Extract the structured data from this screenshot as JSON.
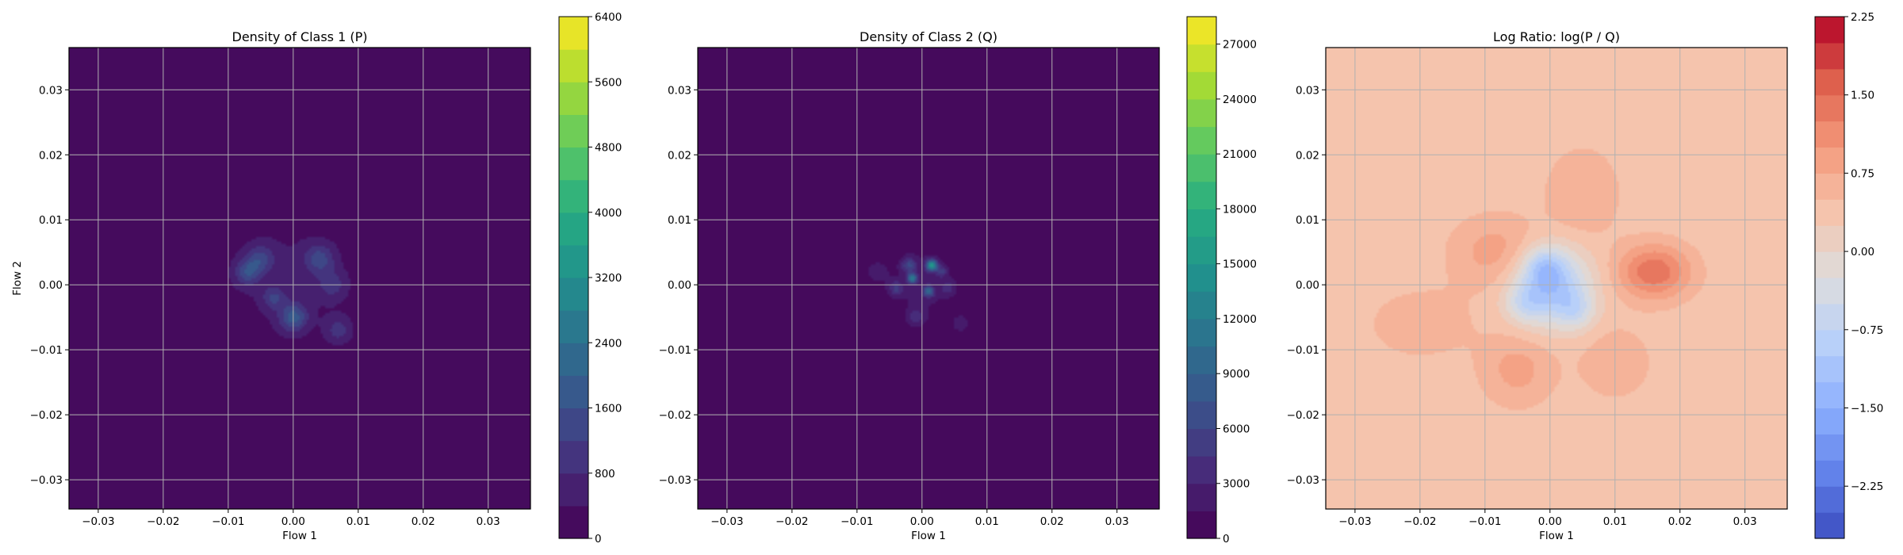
{
  "chart_data": [
    {
      "type": "heatmap",
      "title": "Density of Class 1 (P)",
      "xlabel": "Flow 1",
      "ylabel": "Flow 2",
      "xlim": [
        -0.0345,
        0.0365
      ],
      "ylim": [
        -0.0345,
        0.0365
      ],
      "xticks": [
        -0.03,
        -0.02,
        -0.01,
        0.0,
        0.01,
        0.02,
        0.03
      ],
      "xtick_labels": [
        "−0.03",
        "−0.02",
        "−0.01",
        "0.00",
        "0.01",
        "0.02",
        "0.03"
      ],
      "yticks": [
        -0.03,
        -0.02,
        -0.01,
        0.0,
        0.01,
        0.02,
        0.03
      ],
      "ytick_labels": [
        "−0.03",
        "−0.02",
        "−0.01",
        "0.00",
        "0.01",
        "0.02",
        "0.03"
      ],
      "grid": true,
      "colormap": "viridis",
      "colorbar": {
        "range": [
          0,
          6400
        ],
        "ticks": [
          0,
          800,
          1600,
          2400,
          3200,
          4000,
          4800,
          5600,
          6400
        ],
        "tick_labels": [
          "0",
          "800",
          "1600",
          "2400",
          "3200",
          "4000",
          "4800",
          "5600",
          "6400"
        ],
        "levels": 16
      },
      "background_value": 0,
      "blobs": [
        {
          "x": -0.001,
          "y": 0.001,
          "sx": 0.009,
          "sy": 0.009,
          "value": 450
        },
        {
          "x": 0.0,
          "y": -0.005,
          "sx": 0.0015,
          "sy": 0.0015,
          "value": 1500
        },
        {
          "x": -0.007,
          "y": 0.002,
          "sx": 0.0014,
          "sy": 0.0014,
          "value": 1200
        },
        {
          "x": 0.004,
          "y": 0.004,
          "sx": 0.0016,
          "sy": 0.0016,
          "value": 1100
        },
        {
          "x": -0.005,
          "y": 0.004,
          "sx": 0.0015,
          "sy": 0.0015,
          "value": 1000
        },
        {
          "x": -0.003,
          "y": -0.002,
          "sx": 0.0012,
          "sy": 0.0012,
          "value": 900
        },
        {
          "x": 0.007,
          "y": -0.007,
          "sx": 0.0015,
          "sy": 0.0015,
          "value": 800
        },
        {
          "x": 0.006,
          "y": 0.0,
          "sx": 0.0016,
          "sy": 0.0016,
          "value": 700
        }
      ]
    },
    {
      "type": "heatmap",
      "title": "Density of Class 2 (Q)",
      "xlabel": "Flow 1",
      "ylabel": "",
      "xlim": [
        -0.0345,
        0.0365
      ],
      "ylim": [
        -0.0345,
        0.0365
      ],
      "xticks": [
        -0.03,
        -0.02,
        -0.01,
        0.0,
        0.01,
        0.02,
        0.03
      ],
      "xtick_labels": [
        "−0.03",
        "−0.02",
        "−0.01",
        "0.00",
        "0.01",
        "0.02",
        "0.03"
      ],
      "yticks": [
        -0.03,
        -0.02,
        -0.01,
        0.0,
        0.01,
        0.02,
        0.03
      ],
      "ytick_labels": [
        "−0.03",
        "−0.02",
        "−0.01",
        "0.00",
        "0.01",
        "0.02",
        "0.03"
      ],
      "grid": true,
      "colormap": "viridis",
      "colorbar": {
        "range": [
          0,
          28500
        ],
        "ticks": [
          0,
          3000,
          6000,
          9000,
          12000,
          15000,
          18000,
          21000,
          24000,
          27000
        ],
        "tick_labels": [
          "0",
          "3000",
          "6000",
          "9000",
          "12000",
          "15000",
          "18000",
          "21000",
          "24000",
          "27000"
        ],
        "levels": 19
      },
      "background_value": 0,
      "blobs": [
        {
          "x": 0.0,
          "y": 0.0,
          "sx": 0.0045,
          "sy": 0.0055,
          "value": 1800
        },
        {
          "x": 0.0015,
          "y": 0.003,
          "sx": 0.0006,
          "sy": 0.0006,
          "value": 14000
        },
        {
          "x": -0.0015,
          "y": 0.001,
          "sx": 0.0005,
          "sy": 0.0005,
          "value": 11000
        },
        {
          "x": 0.001,
          "y": -0.001,
          "sx": 0.0006,
          "sy": 0.0006,
          "value": 8000
        },
        {
          "x": -0.002,
          "y": 0.003,
          "sx": 0.0008,
          "sy": 0.0008,
          "value": 5000
        },
        {
          "x": -0.004,
          "y": -0.0005,
          "sx": 0.0008,
          "sy": 0.0008,
          "value": 4000
        },
        {
          "x": 0.004,
          "y": -0.0005,
          "sx": 0.0008,
          "sy": 0.0008,
          "value": 3000
        },
        {
          "x": -0.001,
          "y": -0.005,
          "sx": 0.0009,
          "sy": 0.0009,
          "value": 3000
        },
        {
          "x": 0.003,
          "y": 0.002,
          "sx": 0.0006,
          "sy": 0.0006,
          "value": 4000
        },
        {
          "x": -0.007,
          "y": 0.002,
          "sx": 0.0012,
          "sy": 0.0012,
          "value": 2000
        },
        {
          "x": 0.006,
          "y": -0.006,
          "sx": 0.001,
          "sy": 0.001,
          "value": 2000
        }
      ]
    },
    {
      "type": "heatmap",
      "title": "Log Ratio: log(P / Q)",
      "xlabel": "Flow 1",
      "ylabel": "",
      "xlim": [
        -0.0345,
        0.0365
      ],
      "ylim": [
        -0.0345,
        0.0365
      ],
      "xticks": [
        -0.03,
        -0.02,
        -0.01,
        0.0,
        0.01,
        0.02,
        0.03
      ],
      "xtick_labels": [
        "−0.03",
        "−0.02",
        "−0.01",
        "0.00",
        "0.01",
        "0.02",
        "0.03"
      ],
      "yticks": [
        -0.03,
        -0.02,
        -0.01,
        0.0,
        0.01,
        0.02,
        0.03
      ],
      "ytick_labels": [
        "−0.03",
        "−0.02",
        "−0.01",
        "0.00",
        "0.01",
        "0.02",
        "0.03"
      ],
      "grid": true,
      "colormap": "coolwarm",
      "colorbar": {
        "range": [
          -2.75,
          2.25
        ],
        "ticks": [
          -2.25,
          -1.5,
          -0.75,
          0.0,
          0.75,
          1.5,
          2.25
        ],
        "tick_labels": [
          "−2.25",
          "−1.50",
          "−0.75",
          "0.00",
          "0.75",
          "1.50",
          "2.25"
        ],
        "levels": 20
      },
      "background_value": 0.35,
      "blobs": [
        {
          "x": 0.0,
          "y": 0.0,
          "sx": 0.004,
          "sy": 0.004,
          "value": -1.6
        },
        {
          "x": -0.001,
          "y": 0.003,
          "sx": 0.002,
          "sy": 0.002,
          "value": -0.6
        },
        {
          "x": 0.004,
          "y": -0.004,
          "sx": 0.002,
          "sy": 0.002,
          "value": -0.6
        },
        {
          "x": -0.004,
          "y": -0.003,
          "sx": 0.002,
          "sy": 0.002,
          "value": -0.5
        },
        {
          "x": 0.016,
          "y": 0.002,
          "sx": 0.004,
          "sy": 0.003,
          "value": 1.1
        },
        {
          "x": -0.008,
          "y": 0.005,
          "sx": 0.005,
          "sy": 0.004,
          "value": 0.55
        },
        {
          "x": -0.005,
          "y": -0.013,
          "sx": 0.004,
          "sy": 0.004,
          "value": 0.5
        },
        {
          "x": 0.005,
          "y": 0.014,
          "sx": 0.004,
          "sy": 0.005,
          "value": 0.4
        },
        {
          "x": 0.01,
          "y": -0.012,
          "sx": 0.004,
          "sy": 0.004,
          "value": 0.35
        },
        {
          "x": -0.02,
          "y": -0.006,
          "sx": 0.006,
          "sy": 0.004,
          "value": 0.3
        }
      ]
    }
  ]
}
